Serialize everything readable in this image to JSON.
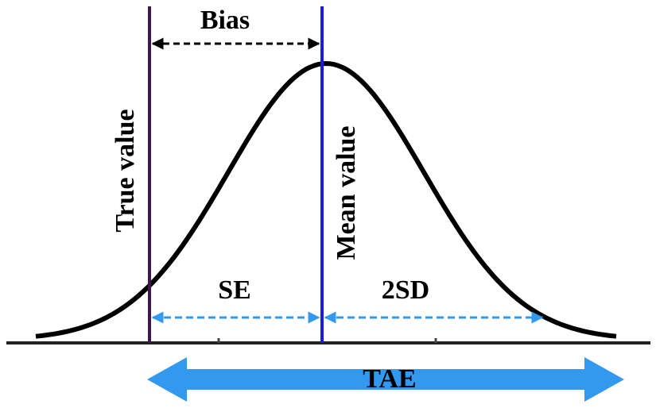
{
  "labels": {
    "bias": "Bias",
    "true_value": "True value",
    "mean_value": "Mean value",
    "se": "SE",
    "two_sd": "2SD",
    "tae": "TAE"
  }
}
